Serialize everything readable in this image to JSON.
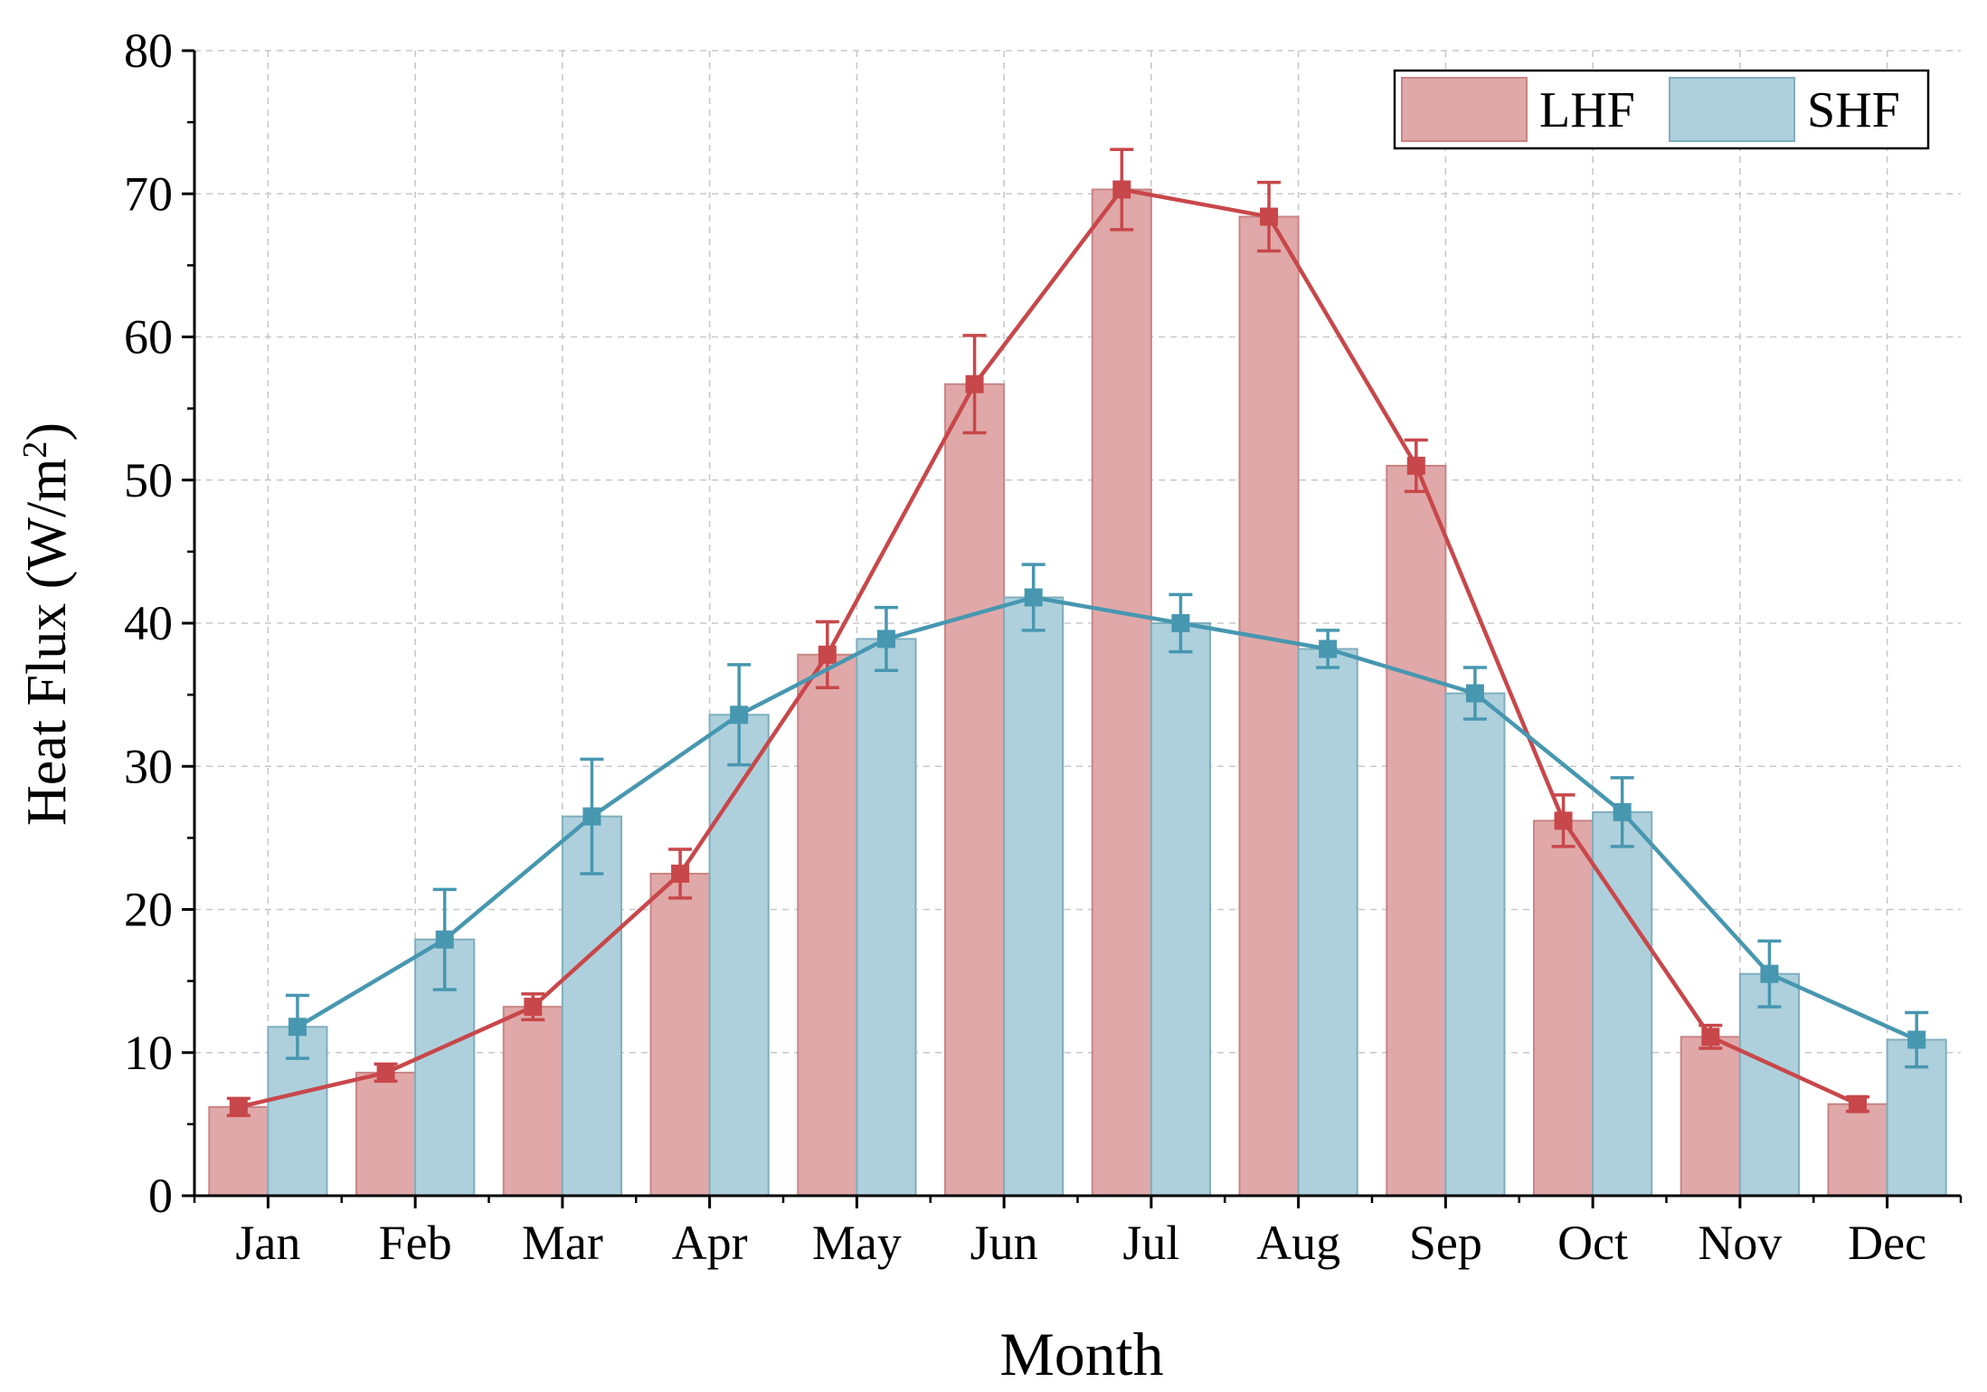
{
  "chart_data": {
    "type": "bar",
    "title": "",
    "xlabel": "Month",
    "ylabel_main": "Heat Flux (W/m",
    "ylabel_sup": "2",
    "ylabel_close": ")",
    "ylim": [
      0,
      80
    ],
    "yticks": [
      0,
      10,
      20,
      30,
      40,
      50,
      60,
      70,
      80
    ],
    "grid": true,
    "legend_position": "top-right",
    "categories": [
      "Jan",
      "Feb",
      "Mar",
      "Apr",
      "May",
      "Jun",
      "Jul",
      "Aug",
      "Sep",
      "Oct",
      "Nov",
      "Dec"
    ],
    "series": [
      {
        "name": "LHF",
        "bar_color": "#e0a8a8",
        "bar_edge": "#c98484",
        "line_color": "#c8474a",
        "values": [
          6.2,
          8.6,
          13.2,
          22.5,
          37.8,
          56.7,
          70.3,
          68.4,
          51.0,
          26.2,
          11.1,
          6.4
        ],
        "errors": [
          0.6,
          0.6,
          0.9,
          1.7,
          2.3,
          3.4,
          2.8,
          2.4,
          1.8,
          1.8,
          0.8,
          0.5
        ]
      },
      {
        "name": "SHF",
        "bar_color": "#aed0dc",
        "bar_edge": "#7faebe",
        "line_color": "#4797b0",
        "values": [
          11.8,
          17.9,
          26.5,
          33.6,
          38.9,
          41.8,
          40.0,
          38.2,
          35.1,
          26.8,
          15.5,
          10.9
        ],
        "errors": [
          2.2,
          3.5,
          4.0,
          3.5,
          2.2,
          2.3,
          2.0,
          1.3,
          1.8,
          2.4,
          2.3,
          1.9
        ]
      }
    ]
  }
}
